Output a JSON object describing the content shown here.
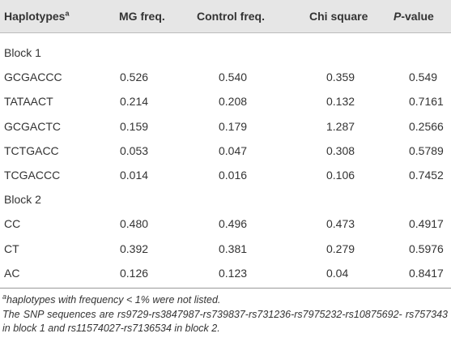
{
  "table": {
    "header": {
      "haplotypes": "Haplotypes",
      "haplotypes_sup": "a",
      "mg": "MG freq.",
      "control": "Control freq.",
      "chi": "Chi square",
      "p_italic": "P",
      "p_rest": "-value"
    },
    "groups": [
      {
        "label": "Block 1",
        "rows": [
          [
            "GCGACCC",
            "0.526",
            "0.540",
            "0.359",
            "0.549"
          ],
          [
            "TATAACT",
            "0.214",
            "0.208",
            "0.132",
            "0.7161"
          ],
          [
            "GCGACTC",
            "0.159",
            "0.179",
            "1.287",
            "0.2566"
          ],
          [
            "TCTGACC",
            "0.053",
            "0.047",
            "0.308",
            "0.5789"
          ],
          [
            "TCGACCC",
            "0.014",
            "0.016",
            "0.106",
            "0.7452"
          ]
        ]
      },
      {
        "label": "Block 2",
        "rows": [
          [
            "CC",
            "0.480",
            "0.496",
            "0.473",
            "0.4917"
          ],
          [
            "CT",
            "0.392",
            "0.381",
            "0.279",
            "0.5976"
          ],
          [
            "AC",
            "0.126",
            "0.123",
            "0.04",
            "0.8417"
          ]
        ]
      }
    ]
  },
  "footnotes": {
    "a_mark": "a",
    "a_text": "haplotypes with frequency < 1% were not listed.",
    "snp": "The SNP sequences are rs9729-rs3847987-rs739837-rs731236-rs7975232-rs10875692- rs757343 in block 1 and rs11574027-rs7136534 in block 2."
  }
}
